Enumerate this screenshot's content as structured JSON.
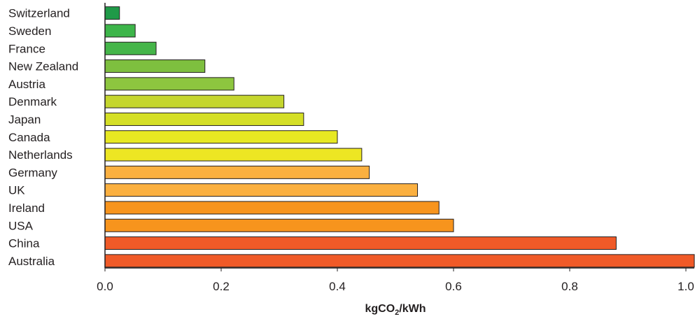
{
  "chart_data": {
    "type": "bar",
    "orientation": "horizontal",
    "categories": [
      "Switzerland",
      "Sweden",
      "France",
      "New Zealand",
      "Austria",
      "Denmark",
      "Japan",
      "Canada",
      "Netherlands",
      "Germany",
      "UK",
      "Ireland",
      "USA",
      "China",
      "Australia"
    ],
    "values": [
      0.025,
      0.052,
      0.088,
      0.172,
      0.222,
      0.308,
      0.342,
      0.4,
      0.442,
      0.455,
      0.538,
      0.575,
      0.6,
      0.88,
      1.02
    ],
    "colors": [
      "#1f9a48",
      "#3db54a",
      "#45b549",
      "#7ebf3f",
      "#8dc63f",
      "#c5d62e",
      "#d5df26",
      "#e7e822",
      "#ede623",
      "#fbb040",
      "#fbb040",
      "#f7941d",
      "#f7941d",
      "#f05a28",
      "#f05a28"
    ],
    "xticks": [
      "0.0",
      "0.2",
      "0.4",
      "0.6",
      "0.8",
      "1.0"
    ],
    "xlim": [
      0,
      1.02
    ],
    "xlabel_main": "kgCO",
    "xlabel_sub": "2",
    "xlabel_tail": "/kWh",
    "grid": false
  }
}
